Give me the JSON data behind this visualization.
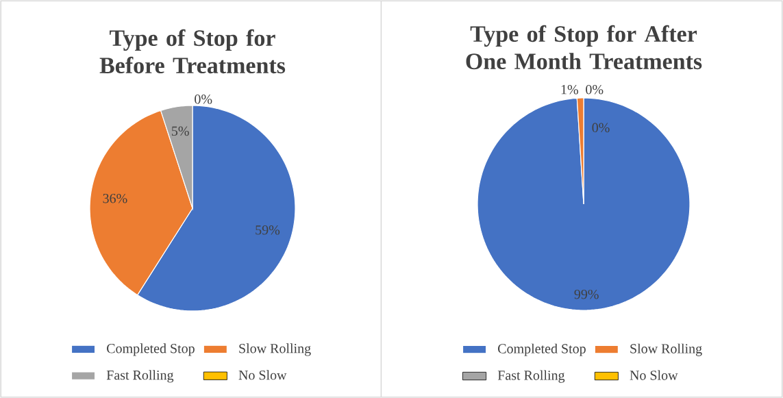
{
  "chart_data": [
    {
      "type": "pie",
      "title": "Type of Stop for Before Treatments",
      "categories": [
        "Completed Stop",
        "Slow Rolling",
        "Fast Rolling",
        "No Slow"
      ],
      "values": [
        59,
        36,
        5,
        0
      ],
      "colors": [
        "#4472c4",
        "#ed7d31",
        "#a5a5a5",
        "#ffc000"
      ],
      "value_labels": [
        "59%",
        "36%",
        "5%",
        "0%"
      ],
      "legend": "bottom"
    },
    {
      "type": "pie",
      "title": "Type of Stop for After One Month Treatments",
      "categories": [
        "Completed Stop",
        "Slow Rolling",
        "Fast Rolling",
        "No Slow"
      ],
      "values": [
        99,
        1,
        0,
        0
      ],
      "colors": [
        "#4472c4",
        "#ed7d31",
        "#a5a5a5",
        "#ffc000"
      ],
      "value_labels": [
        "99%",
        "1%",
        "0%",
        "0%"
      ],
      "legend": "bottom"
    }
  ]
}
